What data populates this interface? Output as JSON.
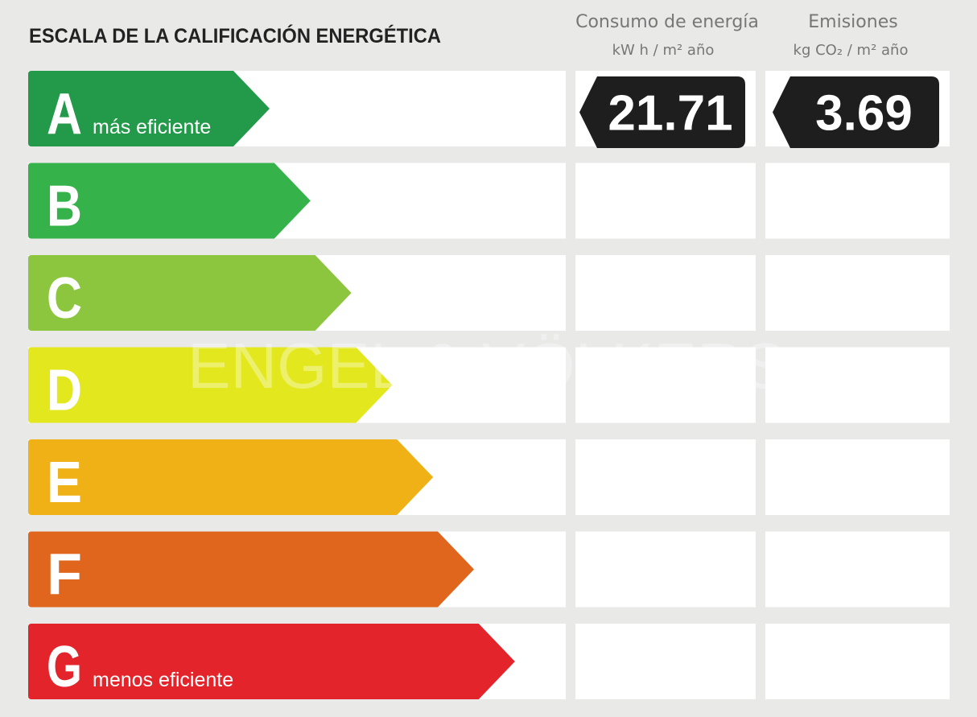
{
  "title": "ESCALA DE LA CALIFICACIÓN ENERGÉTICA",
  "columns": [
    {
      "label": "Consumo de energía",
      "unit": "kW h / m² año"
    },
    {
      "label": "Emisiones",
      "unit": "kg CO₂ / m² año"
    }
  ],
  "ratings": [
    {
      "letter": "A",
      "note": "más eficiente",
      "color": "#23994a",
      "values": [
        21.71,
        3.69
      ]
    },
    {
      "letter": "B",
      "color": "#35b34a"
    },
    {
      "letter": "C",
      "color": "#8cc63f"
    },
    {
      "letter": "D",
      "color": "#e3e81e"
    },
    {
      "letter": "E",
      "color": "#efb115"
    },
    {
      "letter": "F",
      "color": "#e0661e"
    },
    {
      "letter": "G",
      "note": "menos eficiente",
      "color": "#e3242b"
    }
  ],
  "watermark": "ENGEL & VÖLKERS"
}
